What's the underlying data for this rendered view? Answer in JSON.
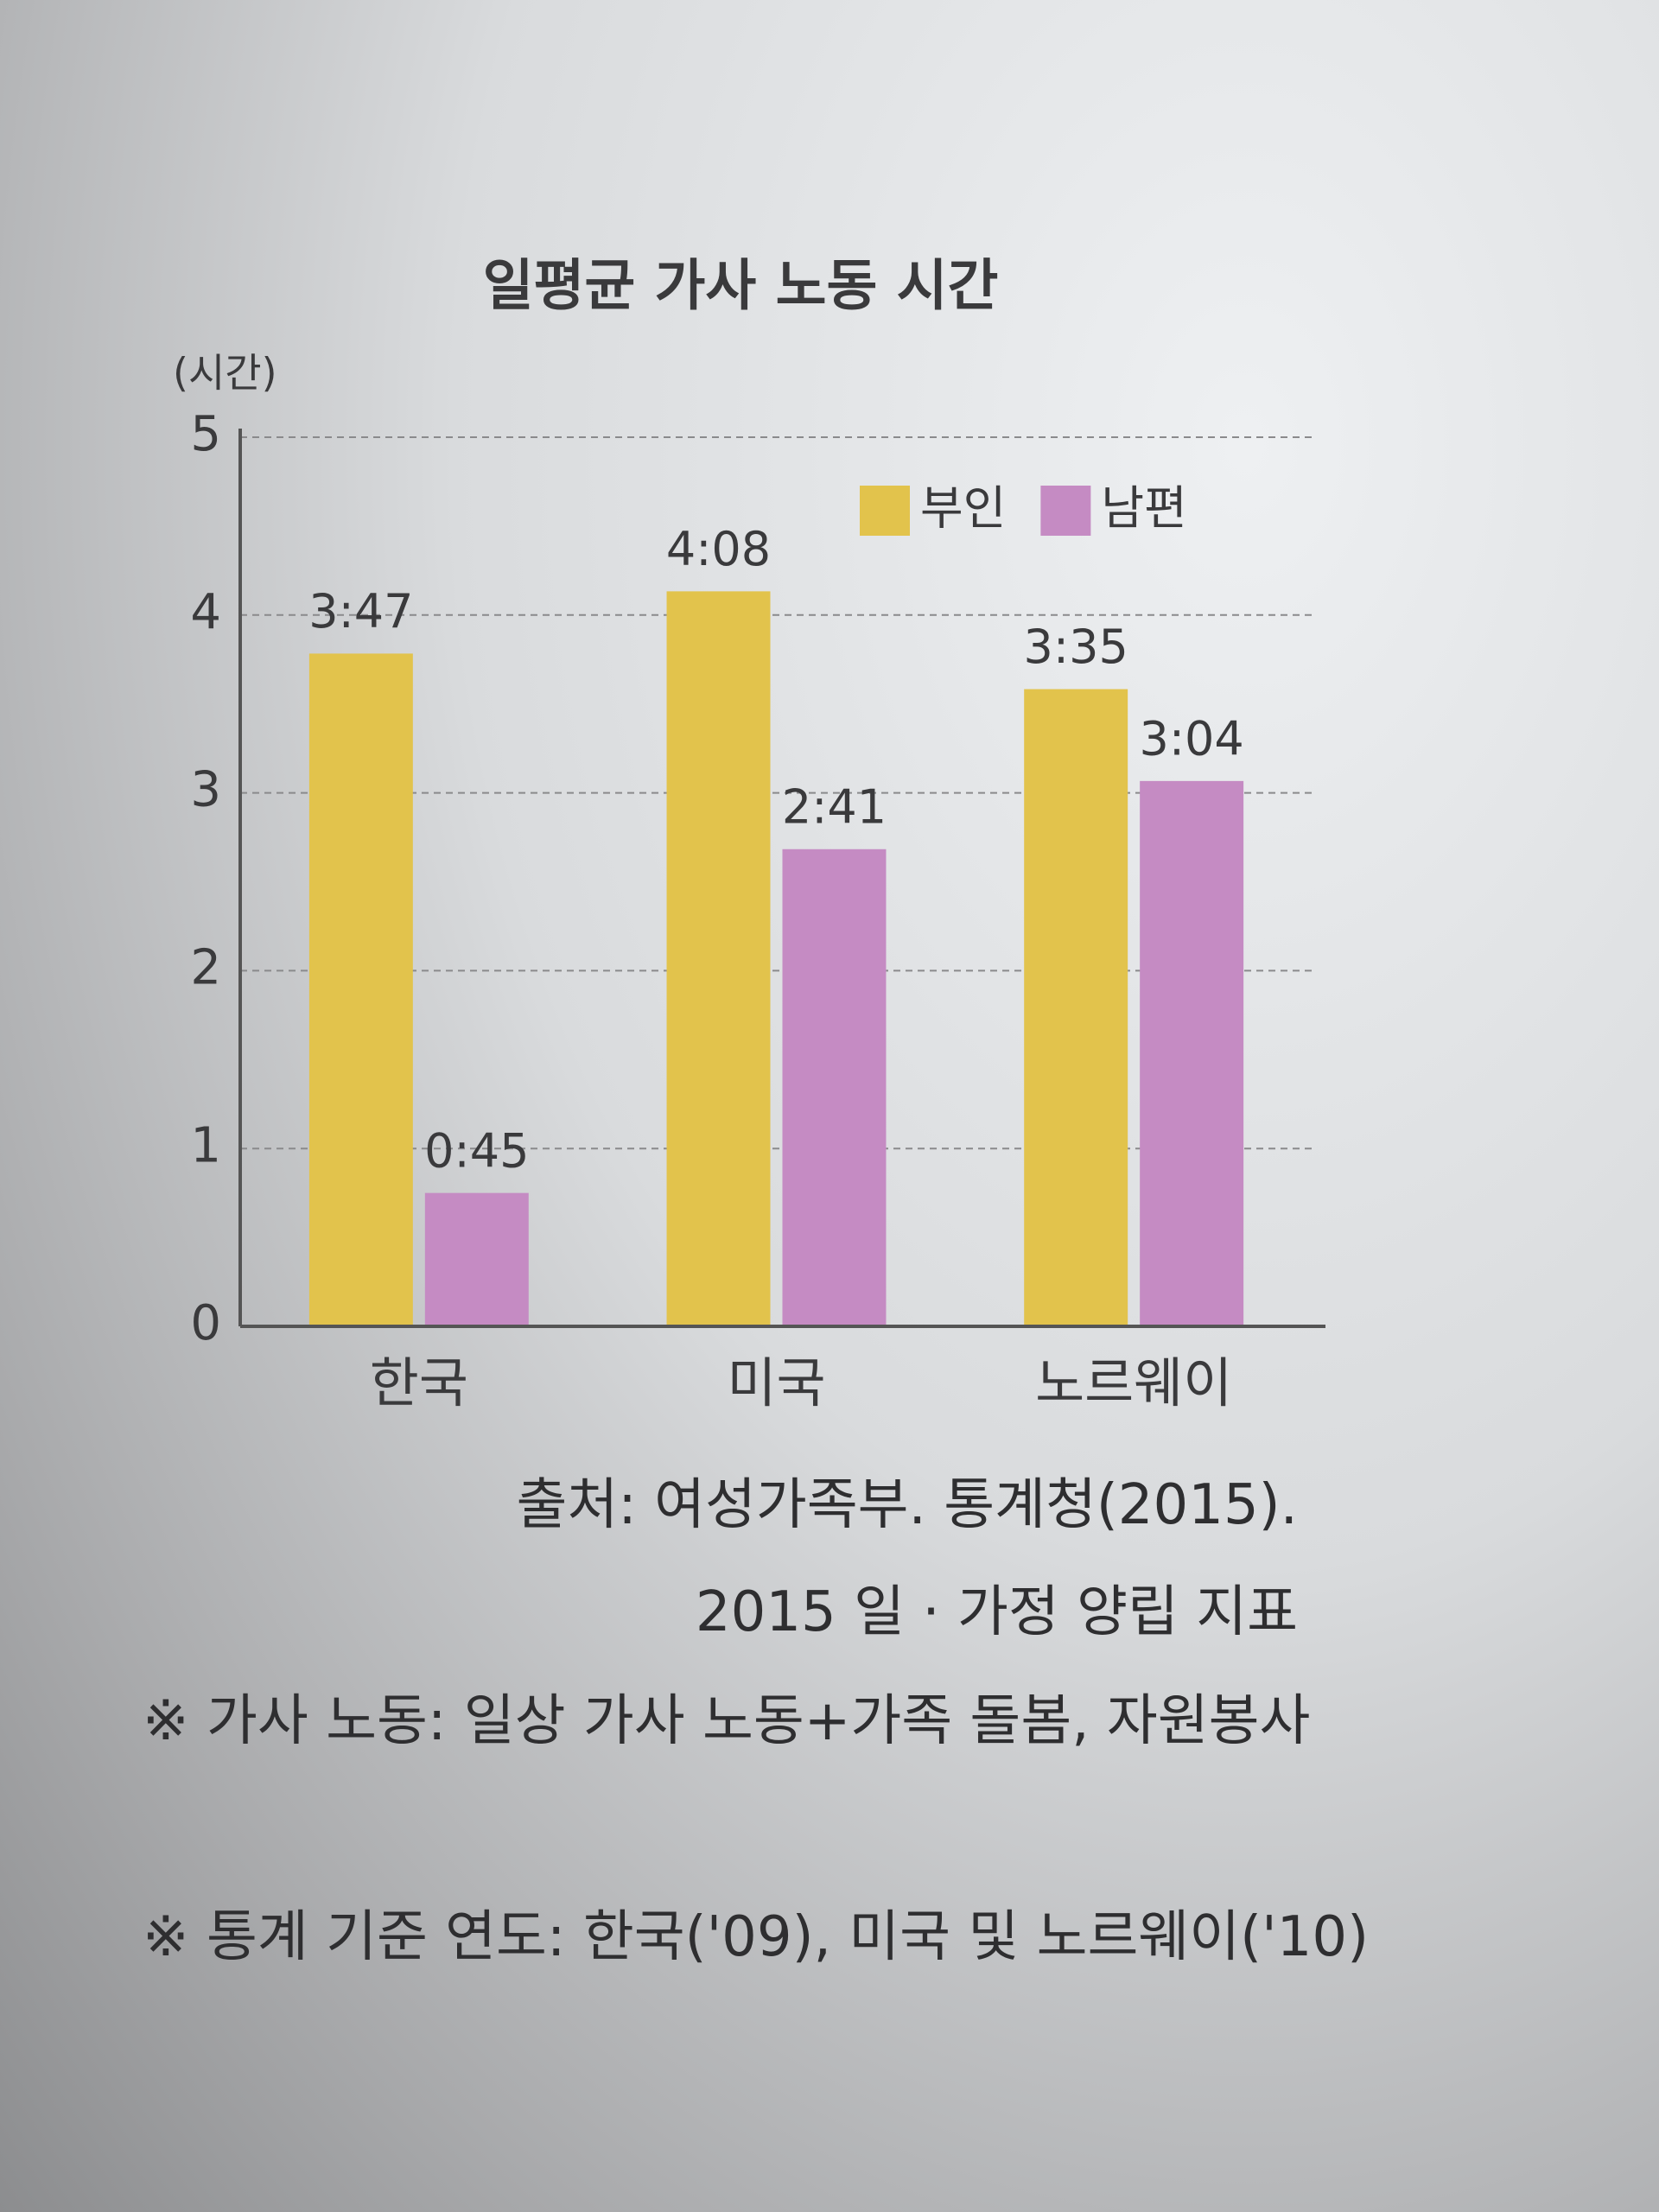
{
  "chart_data": {
    "type": "bar",
    "title": "일평균 가사 노동 시간",
    "y_label": "(시간)",
    "categories": [
      "한국",
      "미국",
      "노르웨이"
    ],
    "series": [
      {
        "name": "부인",
        "color": "#e2c34c",
        "values": [
          3.7833,
          4.1333,
          3.5833
        ],
        "value_labels": [
          "3:47",
          "4:08",
          "3:35"
        ]
      },
      {
        "name": "남편",
        "color": "#c58bc3",
        "values": [
          0.75,
          2.6833,
          3.0667
        ],
        "value_labels": [
          "0:45",
          "2:41",
          "3:04"
        ]
      }
    ],
    "ylim": [
      0,
      5
    ],
    "yticks": [
      0,
      1,
      2,
      3,
      4,
      5
    ],
    "grid": true,
    "legend": "upper right",
    "source": [
      "출처: 여성가족부. 통계청(2015).",
      "2015 일 · 가정 양립 지표"
    ],
    "notes": [
      "※ 가사 노동: 일상 가사 노동+가족 돌봄, 자원봉사",
      "※ 통계 기준 연도: 한국('09), 미국 및 노르웨이('10)"
    ]
  }
}
